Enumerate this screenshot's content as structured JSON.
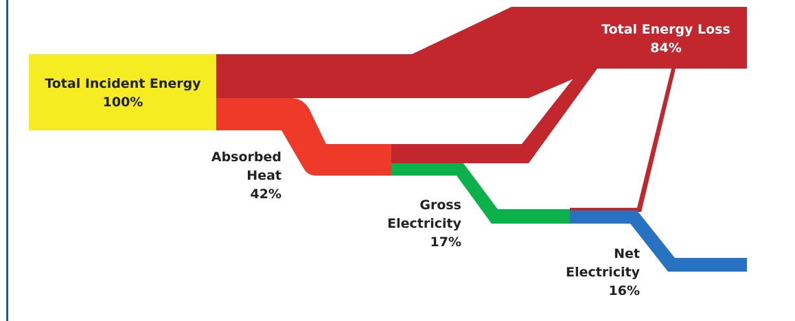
{
  "colors": {
    "incident": "#f6ec22",
    "loss": "#c1272d",
    "absorbed": "#ef3a2a",
    "gross": "#0cb14b",
    "net": "#2773c1",
    "border": "#1f5a9e"
  },
  "nodes": {
    "incident": {
      "line1": "Total Incident Energy",
      "value": "100%"
    },
    "loss": {
      "line1": "Total Energy Loss",
      "value": "84%"
    },
    "absorbed": {
      "line1": "Absorbed",
      "line2": "Heat",
      "value": "42%"
    },
    "gross": {
      "line1": "Gross",
      "line2": "Electricity",
      "value": "17%"
    },
    "net": {
      "line1": "Net",
      "line2": "Electricity",
      "value": "16%"
    }
  },
  "flows": [
    {
      "from": "incident",
      "to": "loss",
      "value": 58
    },
    {
      "from": "incident",
      "to": "absorbed",
      "value": 42
    },
    {
      "from": "absorbed",
      "to": "loss",
      "value": 25
    },
    {
      "from": "absorbed",
      "to": "gross",
      "value": 17
    },
    {
      "from": "gross",
      "to": "loss",
      "value": 1
    },
    {
      "from": "gross",
      "to": "net",
      "value": 16
    }
  ]
}
